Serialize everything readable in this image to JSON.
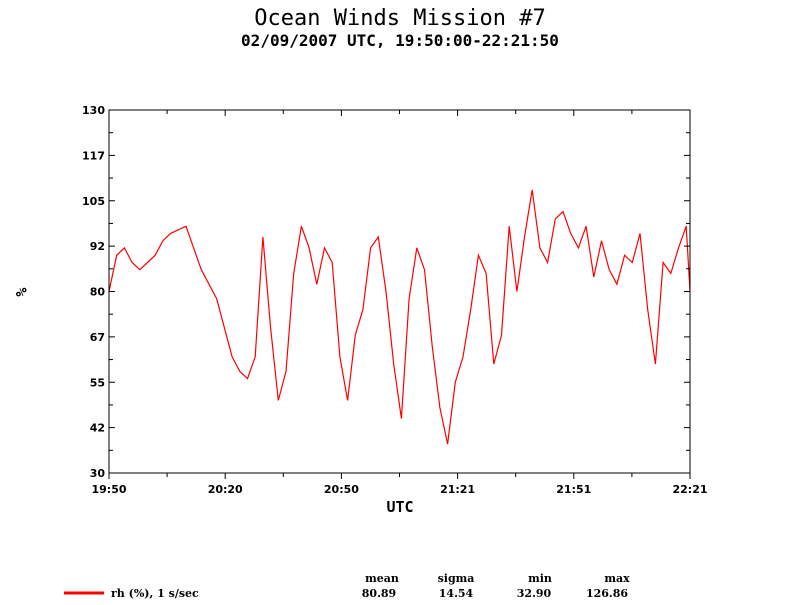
{
  "chart_data": {
    "type": "line",
    "title": "Ocean Winds Mission #7",
    "subtitle": "02/09/2007  UTC, 19:50:00-22:21:50",
    "xlabel": "UTC",
    "ylabel": "%",
    "xlim": [
      "19:50",
      "22:21"
    ],
    "ylim": [
      30,
      130
    ],
    "x_tick_labels": [
      "19:50",
      "20:20",
      "20:50",
      "21:21",
      "21:51",
      "22:21"
    ],
    "y_tick_labels": [
      "30",
      "42",
      "55",
      "67",
      "80",
      "92",
      "105",
      "117",
      "130"
    ],
    "grid": false,
    "series": [
      {
        "name": "rh (%), 1 s/sec",
        "color": "#ff0000",
        "stats": {
          "mean": "80.89",
          "sigma": "14.54",
          "min": "32.90",
          "max": "126.86"
        },
        "x": [
          "19:50",
          "19:52",
          "19:54",
          "19:56",
          "19:58",
          "20:00",
          "20:02",
          "20:04",
          "20:06",
          "20:08",
          "20:10",
          "20:12",
          "20:14",
          "20:16",
          "20:18",
          "20:20",
          "20:22",
          "20:24",
          "20:26",
          "20:28",
          "20:30",
          "20:32",
          "20:34",
          "20:36",
          "20:38",
          "20:40",
          "20:42",
          "20:44",
          "20:46",
          "20:48",
          "20:50",
          "20:52",
          "20:54",
          "20:56",
          "20:58",
          "21:00",
          "21:02",
          "21:04",
          "21:06",
          "21:08",
          "21:10",
          "21:12",
          "21:14",
          "21:16",
          "21:18",
          "21:20",
          "21:22",
          "21:24",
          "21:26",
          "21:28",
          "21:30",
          "21:32",
          "21:34",
          "21:36",
          "21:38",
          "21:40",
          "21:42",
          "21:44",
          "21:46",
          "21:48",
          "21:50",
          "21:52",
          "21:54",
          "21:56",
          "21:58",
          "22:00",
          "22:02",
          "22:04",
          "22:06",
          "22:08",
          "22:10",
          "22:12",
          "22:14",
          "22:16",
          "22:18",
          "22:20",
          "22:21"
        ],
        "y": [
          80,
          90,
          92,
          88,
          86,
          88,
          90,
          94,
          96,
          97,
          98,
          92,
          86,
          82,
          78,
          70,
          62,
          58,
          56,
          62,
          95,
          70,
          50,
          58,
          85,
          98,
          92,
          82,
          92,
          88,
          62,
          50,
          68,
          75,
          92,
          95,
          80,
          60,
          45,
          78,
          92,
          86,
          65,
          48,
          38,
          55,
          62,
          75,
          90,
          85,
          60,
          68,
          98,
          80,
          95,
          108,
          92,
          88,
          100,
          102,
          96,
          92,
          98,
          84,
          94,
          86,
          82,
          90,
          88,
          96,
          75,
          60,
          88,
          85,
          92,
          98,
          80
        ]
      }
    ]
  }
}
